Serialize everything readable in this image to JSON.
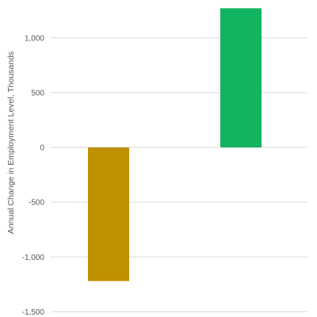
{
  "chart_data": {
    "type": "bar",
    "title": "",
    "xlabel": "",
    "ylabel": "Annual Change in Employment Level, Thousands",
    "categories": [
      "",
      ""
    ],
    "values": [
      -1220,
      1270
    ],
    "ylim": [
      -1500,
      1300
    ],
    "yticks": [
      1000,
      500,
      0,
      -500,
      -1000,
      -1500
    ],
    "ytick_labels": [
      "1,000",
      "500",
      "0",
      "-500",
      "-1,000",
      "-1,500"
    ],
    "bar_colors": [
      "#bf9000",
      "#12b361"
    ],
    "grid": true,
    "legend": "none"
  }
}
